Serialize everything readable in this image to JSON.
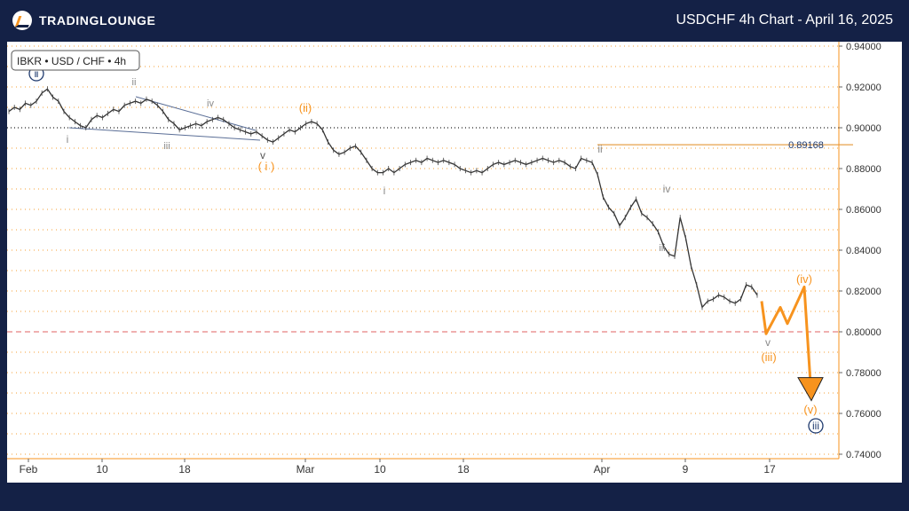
{
  "header": {
    "logo_text": "TRADINGLOUNGE",
    "title": "USDCHF 4h Chart - April 16, 2025"
  },
  "symbol_label": "IBKR • USD / CHF • 4h",
  "price_line": {
    "value": 0.89168,
    "label": "0.89168",
    "color": "#e08a1e"
  },
  "colors": {
    "orange": "#f7931e",
    "navy": "#1f3a6e",
    "gray": "#8a8a8a",
    "price": "#333333",
    "grid_orange": "#f7b25c",
    "red": "#e06060"
  },
  "chart_data": {
    "type": "line",
    "x_ticks": [
      "Feb",
      "10",
      "18",
      "Mar",
      "10",
      "18",
      "Apr",
      "9",
      "17"
    ],
    "y_ticks": [
      "0.94000",
      "0.92000",
      "0.90000",
      "0.88000",
      "0.86000",
      "0.84000",
      "0.82000",
      "0.80000",
      "0.78000",
      "0.76000",
      "0.74000"
    ],
    "ylim": [
      0.74,
      0.94
    ],
    "reference_lines": [
      {
        "y": 0.9,
        "style": "black-dotted"
      },
      {
        "y": 0.8,
        "style": "red-dashed"
      }
    ],
    "series": [
      {
        "values": [
          0.908,
          0.91,
          0.909,
          0.912,
          0.911,
          0.913,
          0.917,
          0.919,
          0.915,
          0.913,
          0.908,
          0.905,
          0.903,
          0.901,
          0.9,
          0.904,
          0.906,
          0.905,
          0.907,
          0.909,
          0.908,
          0.911,
          0.912,
          0.913,
          0.912,
          0.914,
          0.913,
          0.911,
          0.908,
          0.904,
          0.902,
          0.899,
          0.9,
          0.901,
          0.902,
          0.901,
          0.903,
          0.904,
          0.905,
          0.904,
          0.902,
          0.9,
          0.899,
          0.898,
          0.897,
          0.898,
          0.896,
          0.894,
          0.893,
          0.895,
          0.897,
          0.899,
          0.898,
          0.9,
          0.902,
          0.903,
          0.902,
          0.899,
          0.893,
          0.889,
          0.887,
          0.888,
          0.89,
          0.891,
          0.888,
          0.884,
          0.88,
          0.878,
          0.878,
          0.88,
          0.878,
          0.88,
          0.882,
          0.883,
          0.884,
          0.883,
          0.885,
          0.884,
          0.883,
          0.884,
          0.883,
          0.882,
          0.88,
          0.879,
          0.878,
          0.879,
          0.878,
          0.88,
          0.882,
          0.883,
          0.882,
          0.883,
          0.884,
          0.883,
          0.882,
          0.883,
          0.884,
          0.885,
          0.884,
          0.883,
          0.884,
          0.883,
          0.881,
          0.88,
          0.885,
          0.884,
          0.883,
          0.877,
          0.866,
          0.861,
          0.858,
          0.852,
          0.856,
          0.861,
          0.865,
          0.858,
          0.856,
          0.853,
          0.849,
          0.842,
          0.838,
          0.837,
          0.856,
          0.846,
          0.832,
          0.823,
          0.812,
          0.815,
          0.816,
          0.818,
          0.817,
          0.815,
          0.814,
          0.816,
          0.823,
          0.822,
          0.818
        ],
        "color": "#333333"
      }
    ],
    "projection": {
      "values": [
        0.815,
        0.799,
        0.812,
        0.804,
        0.822,
        0.768
      ],
      "color": "#f7931e"
    },
    "wave_labels": [
      {
        "text": "ⅱ",
        "color": "#1f3a6e",
        "circled": true
      },
      {
        "text": "ii",
        "color": "#8a8a8a"
      },
      {
        "text": "iv",
        "color": "#8a8a8a"
      },
      {
        "text": "i",
        "color": "#8a8a8a"
      },
      {
        "text": "iii",
        "color": "#8a8a8a"
      },
      {
        "text": "v",
        "color": "#555555"
      },
      {
        "text": "( i )",
        "color": "#f7931e"
      },
      {
        "text": "(ii)",
        "color": "#f7931e"
      },
      {
        "text": "ii",
        "color": "#8a8a8a"
      },
      {
        "text": "i",
        "color": "#8a8a8a"
      },
      {
        "text": "iv",
        "color": "#8a8a8a"
      },
      {
        "text": "iii",
        "color": "#8a8a8a"
      },
      {
        "text": "v",
        "color": "#8a8a8a"
      },
      {
        "text": "(iii)",
        "color": "#f7931e"
      },
      {
        "text": "(iv)",
        "color": "#f7931e"
      },
      {
        "text": "(v)",
        "color": "#f7931e"
      },
      {
        "text": "iii",
        "color": "#1f3a6e",
        "circled": true
      }
    ]
  }
}
